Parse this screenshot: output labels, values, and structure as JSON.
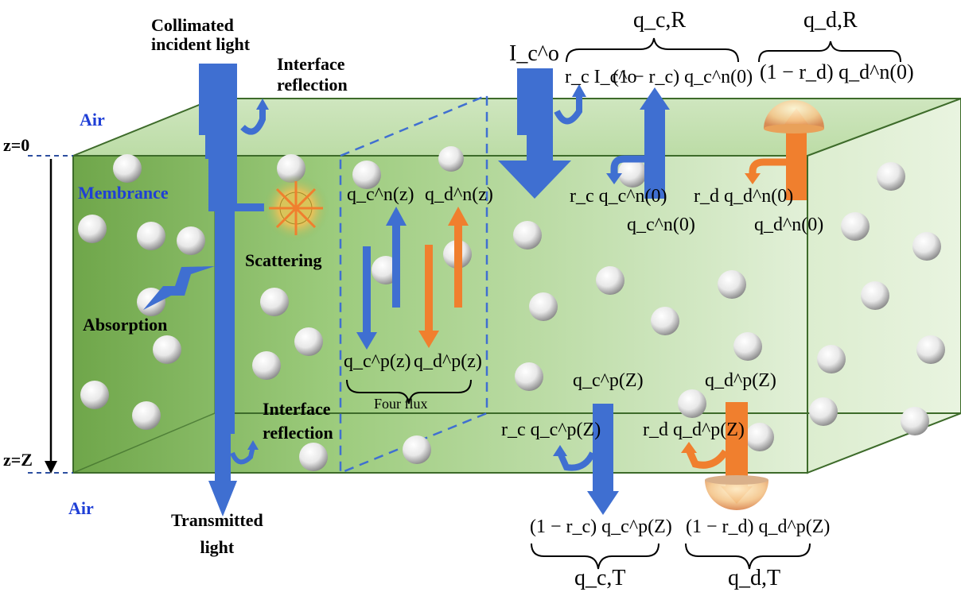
{
  "labels": {
    "collimated_incident_light": [
      "Collimated",
      "incident light"
    ],
    "interface_reflection_top": [
      "Interface",
      "reflection"
    ],
    "interface_reflection_bottom": [
      "Interface",
      "reflection"
    ],
    "air_top": "Air",
    "air_bottom": "Air",
    "z0": "z=0",
    "zZ": "z=Z",
    "membrane": "Membrance",
    "scattering": "Scattering",
    "absorption": "Absorption",
    "transmitted_light": [
      "Transmitted",
      "light"
    ],
    "four_flux": "Four flux"
  },
  "math": {
    "incident": "I_c^o",
    "q_cR": "q_c,R",
    "q_dR": "q_d,R",
    "q_cT": "q_c,T",
    "q_dT": "q_d,T",
    "rc_Ic": "r_c I_c^o",
    "one_minus_rc_qcn0": "(1 − r_c) q_c^n(0)",
    "one_minus_rd_qdn0": "(1 − r_d) q_d^n(0)",
    "rc_qcn0": "r_c q_c^n(0)",
    "rd_qdn0": "r_d q_d^n(0)",
    "qcn0": "q_c^n(0)",
    "qdn0": "q_d^n(0)",
    "qcn_z": "q_c^n(z)",
    "qdn_z": "q_d^n(z)",
    "qcp_z": "q_c^p(z)",
    "qdp_z": "q_d^p(z)",
    "qcp_Z": "q_c^p(Z)",
    "qdp_Z": "q_d^p(Z)",
    "rc_qcp_Z": "r_c q_c^p(Z)",
    "rd_qdp_Z": "r_d q_d^p(Z)",
    "one_minus_rc_qcp_Z": "(1 − r_c) q_c^p(Z)",
    "one_minus_rd_qdp_Z": "(1 − r_d) q_d^p(Z)"
  },
  "colors": {
    "collimated": "#3f6fd1",
    "diffuse": "#f07f2e",
    "membrane_green": "#8cbf6a",
    "air_label": "#1f3fd6"
  }
}
